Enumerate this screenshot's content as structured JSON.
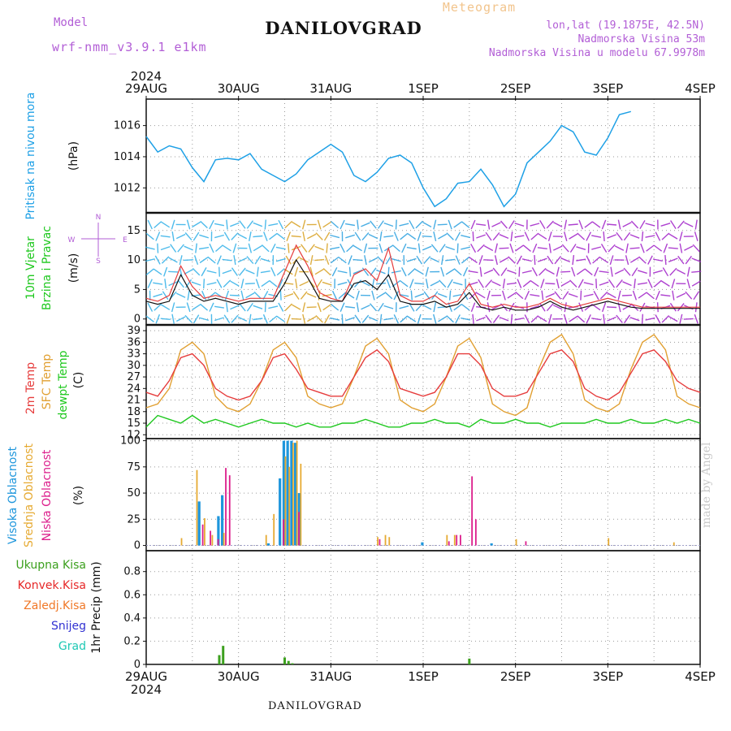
{
  "header": {
    "title": "DANILOVGRAD",
    "subtitle": "Meteogram",
    "model_label": "Model",
    "model_name": "wrf-nmm_v3.9.1 e1km",
    "info": [
      "lon,lat (19.1875E, 42.5N)",
      "Nadmorska Visina 53m",
      "Nadmorska Visina u modelu 67.9978m"
    ],
    "credit": "made by Angel",
    "footer": "DANILOVGRAD"
  },
  "time_axis": {
    "year": "2024",
    "days": [
      "29AUG",
      "30AUG",
      "31AUG",
      "1SEP",
      "2SEP",
      "3SEP",
      "4SEP"
    ],
    "hours": 144
  },
  "colors": {
    "pressure": "#1ea0e6",
    "temp2m": "#e63c3c",
    "sfc": "#e1a032",
    "dew": "#1ec81e",
    "visoka": "#1e96dc",
    "srednja": "#e6aa32",
    "niska": "#dc1e8c",
    "wind_avg": "#111111",
    "wind_gust": "#e63c3c",
    "ukupna": "#3ca01e",
    "konvek": "#e62828",
    "zaledj": "#f07828",
    "snijeg": "#3232d2",
    "grad": "#1ec8b4"
  },
  "chart_data": [
    {
      "panel": "pressure",
      "type": "line",
      "ylabel": [
        "Pritisak na nivou mora",
        "(hPa)"
      ],
      "yticks": [
        1012,
        1014,
        1016
      ],
      "ylim": [
        1010.4,
        1017.7
      ],
      "x_hours": [
        0,
        3,
        6,
        9,
        12,
        15,
        18,
        21,
        24,
        27,
        30,
        33,
        36,
        39,
        42,
        45,
        48,
        51,
        54,
        57,
        60,
        63,
        66,
        69,
        72,
        75,
        78,
        81,
        84,
        87,
        90,
        93,
        96,
        99,
        102,
        105,
        108,
        111,
        114,
        117,
        120,
        123,
        126,
        129,
        132,
        135,
        138,
        141,
        144
      ],
      "values": [
        1015.3,
        1014.3,
        1014.7,
        1014.5,
        1013.3,
        1012.4,
        1013.8,
        1013.9,
        1013.8,
        1014.2,
        1013.2,
        1012.8,
        1012.4,
        1012.9,
        1013.8,
        1014.3,
        1014.8,
        1014.3,
        1012.8,
        1012.4,
        1013.0,
        1013.9,
        1014.1,
        1013.6,
        1012.0,
        1010.8,
        1011.3,
        1012.3,
        1012.4,
        1013.2,
        1012.2,
        1010.8,
        1011.6,
        1013.6,
        1014.3,
        1015.0,
        1016.0,
        1015.6,
        1014.3,
        1014.1,
        1015.2,
        1016.7,
        1016.9,
        null,
        null,
        null,
        null,
        null,
        null
      ],
      "series_names": [
        "Pritisak na nivou mora"
      ]
    },
    {
      "panel": "wind",
      "type": "line",
      "ylabel": [
        "10m Vjetar",
        "Brzina i Pravac",
        "(m/s)"
      ],
      "compass": [
        "N",
        "W",
        "E",
        "S"
      ],
      "yticks": [
        0,
        5,
        10,
        15
      ],
      "ylim": [
        -1,
        18
      ],
      "x_hours": [
        0,
        3,
        6,
        9,
        12,
        15,
        18,
        21,
        24,
        27,
        30,
        33,
        36,
        39,
        42,
        45,
        48,
        51,
        54,
        57,
        60,
        63,
        66,
        69,
        72,
        75,
        78,
        81,
        84,
        87,
        90,
        93,
        96,
        99,
        102,
        105,
        108,
        111,
        114,
        117,
        120,
        123,
        126,
        129,
        132,
        135,
        138,
        141,
        144
      ],
      "series": [
        {
          "name": "avg",
          "values": [
            3.0,
            2.5,
            3.0,
            7.5,
            4.0,
            3.0,
            3.5,
            3.0,
            2.5,
            3.0,
            3.0,
            3.0,
            6.0,
            10.0,
            7.0,
            3.5,
            3.0,
            3.0,
            6.0,
            6.5,
            5.0,
            7.5,
            3.0,
            2.5,
            2.5,
            3.0,
            2.0,
            2.5,
            4.5,
            2.0,
            1.5,
            2.0,
            1.5,
            1.5,
            2.0,
            3.0,
            2.0,
            1.5,
            2.0,
            2.5,
            3.0,
            2.5,
            2.0,
            1.8,
            1.8,
            1.8,
            1.8,
            1.8,
            1.8
          ]
        },
        {
          "name": "gust",
          "values": [
            3.5,
            3.0,
            4.0,
            9.0,
            5.5,
            3.5,
            4.0,
            3.5,
            3.0,
            3.5,
            3.5,
            3.5,
            8.0,
            12.5,
            9.0,
            4.5,
            3.5,
            3.0,
            7.5,
            8.5,
            6.5,
            12.0,
            4.0,
            3.0,
            3.0,
            4.0,
            2.5,
            3.0,
            6.0,
            2.5,
            2.0,
            2.5,
            2.0,
            2.0,
            2.5,
            3.5,
            2.5,
            2.0,
            2.5,
            3.0,
            3.5,
            3.0,
            2.5,
            2.0,
            2.0,
            2.0,
            2.0,
            2.0,
            2.0
          ]
        }
      ]
    },
    {
      "panel": "temperature",
      "type": "line",
      "ylabel": [
        "2m Temp",
        "SFC Temp",
        "dewpt Temp",
        "(C)"
      ],
      "yticks": [
        12,
        15,
        18,
        21,
        24,
        27,
        30,
        33,
        36,
        39
      ],
      "ylim": [
        11,
        40.5
      ],
      "x_hours": [
        0,
        3,
        6,
        9,
        12,
        15,
        18,
        21,
        24,
        27,
        30,
        33,
        36,
        39,
        42,
        45,
        48,
        51,
        54,
        57,
        60,
        63,
        66,
        69,
        72,
        75,
        78,
        81,
        84,
        87,
        90,
        93,
        96,
        99,
        102,
        105,
        108,
        111,
        114,
        117,
        120,
        123,
        126,
        129,
        132,
        135,
        138,
        141,
        144
      ],
      "series": [
        {
          "name": "2m Temp",
          "values": [
            23,
            22,
            26,
            32,
            33,
            30,
            24,
            22,
            21,
            22,
            26,
            32,
            33,
            29,
            24,
            23,
            22,
            22,
            27,
            32,
            34,
            31,
            24,
            23,
            22,
            23,
            27,
            33,
            33,
            30,
            24,
            22,
            22,
            23,
            28,
            33,
            34,
            31,
            24,
            22,
            21,
            23,
            28,
            33,
            34,
            31,
            26,
            24,
            23
          ]
        },
        {
          "name": "SFC Temp",
          "values": [
            19,
            20,
            24,
            34,
            36,
            33,
            22,
            19,
            18,
            20,
            26,
            34,
            36,
            32,
            22,
            20,
            19,
            20,
            27,
            35,
            37,
            33,
            21,
            19,
            18,
            20,
            27,
            35,
            37,
            32,
            20,
            18,
            17,
            19,
            29,
            36,
            38,
            33,
            21,
            19,
            18,
            20,
            29,
            36,
            38,
            34,
            22,
            20,
            19
          ]
        },
        {
          "name": "dewpt Temp",
          "values": [
            14,
            17,
            16,
            15,
            17,
            15,
            16,
            15,
            14,
            15,
            16,
            15,
            15,
            14,
            15,
            14,
            14,
            15,
            15,
            16,
            15,
            14,
            14,
            15,
            15,
            16,
            15,
            15,
            14,
            16,
            15,
            15,
            16,
            15,
            15,
            14,
            15,
            15,
            15,
            16,
            15,
            15,
            16,
            15,
            15,
            16,
            15,
            16,
            15
          ]
        }
      ]
    },
    {
      "panel": "cloud",
      "type": "bar",
      "ylabel": [
        "Visoka Oblacnost",
        "Srednja Oblacnost",
        "Niska Oblacnost",
        "(%)"
      ],
      "yticks": [
        0,
        25,
        50,
        75,
        100
      ],
      "ylim": [
        -5,
        102
      ],
      "series": [
        {
          "name": "Visoka Oblacnost",
          "points": [
            [
              14,
              42
            ],
            [
              19,
              28
            ],
            [
              20,
              48
            ],
            [
              32,
              2
            ],
            [
              35,
              64
            ],
            [
              36,
              100
            ],
            [
              37,
              100
            ],
            [
              38,
              100
            ],
            [
              39,
              98
            ],
            [
              40,
              50
            ],
            [
              72,
              3
            ],
            [
              90,
              2
            ]
          ]
        },
        {
          "name": "Srednja Oblacnost",
          "points": [
            [
              9,
              7
            ],
            [
              13,
              72
            ],
            [
              15,
              26
            ],
            [
              17,
              10
            ],
            [
              20,
              12
            ],
            [
              31,
              10
            ],
            [
              33,
              30
            ],
            [
              36,
              85
            ],
            [
              37,
              75
            ],
            [
              38,
              98
            ],
            [
              39,
              100
            ],
            [
              40,
              78
            ],
            [
              60,
              8
            ],
            [
              62,
              10
            ],
            [
              63,
              8
            ],
            [
              78,
              10
            ],
            [
              80,
              10
            ],
            [
              96,
              6
            ],
            [
              120,
              7
            ],
            [
              137,
              3
            ]
          ]
        },
        {
          "name": "Niska Oblacnost",
          "points": [
            [
              14,
              20
            ],
            [
              16,
              14
            ],
            [
              18,
              6
            ],
            [
              20,
              74
            ],
            [
              21,
              67
            ],
            [
              35,
              25
            ],
            [
              39,
              32
            ],
            [
              60,
              6
            ],
            [
              78,
              4
            ],
            [
              80,
              10
            ],
            [
              81,
              10
            ],
            [
              84,
              66
            ],
            [
              85,
              25
            ],
            [
              98,
              4
            ]
          ]
        }
      ]
    },
    {
      "panel": "precip",
      "type": "bar",
      "ylabel": [
        "1hr Precip (mm)"
      ],
      "legend": [
        "Ukupna Kisa",
        "Konvek.Kisa",
        "Zaledj.Kisa",
        "Snijeg",
        "Grad"
      ],
      "yticks": [
        0,
        0.2,
        0.4,
        0.6,
        0.8
      ],
      "ylim": [
        0,
        0.98
      ],
      "series": [
        {
          "name": "Ukupna Kisa",
          "points": [
            [
              19,
              0.08
            ],
            [
              20,
              0.16
            ],
            [
              36,
              0.06
            ],
            [
              37,
              0.03
            ],
            [
              38,
              0.01
            ],
            [
              84,
              0.05
            ]
          ]
        }
      ]
    }
  ]
}
